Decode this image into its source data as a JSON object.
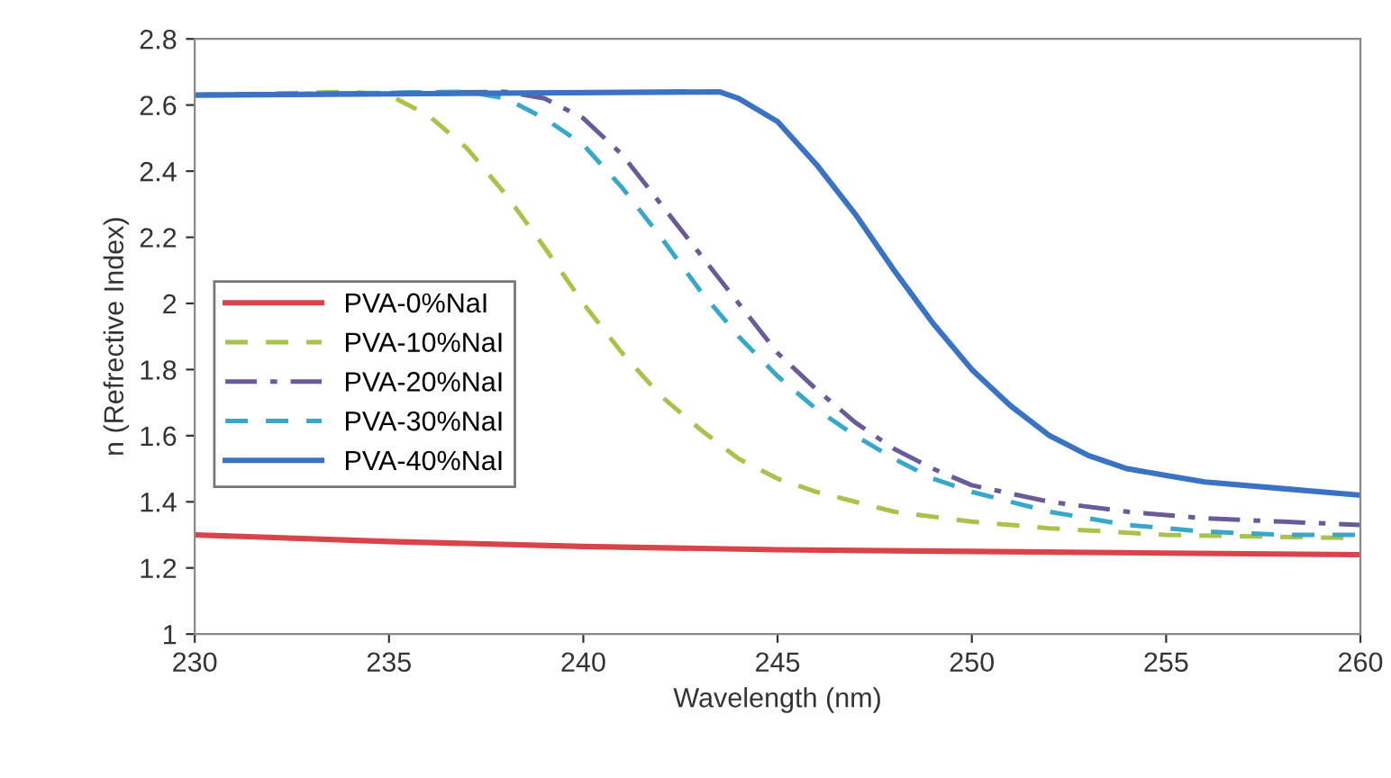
{
  "chart_data": {
    "type": "line",
    "xlabel": "Wavelength (nm)",
    "ylabel": "n (Refrective Index)",
    "xlim": [
      230,
      260
    ],
    "ylim": [
      1,
      2.8
    ],
    "xticks": [
      230,
      235,
      240,
      245,
      250,
      255,
      260
    ],
    "yticks": [
      1,
      1.2,
      1.4,
      1.6,
      1.8,
      2,
      2.2,
      2.4,
      2.6,
      2.8
    ],
    "grid": false,
    "legend": "center left",
    "marker": "none",
    "series": [
      {
        "name": "PVA-0%NaI",
        "color": "#d9434a",
        "line_style": "solid",
        "x": [
          230,
          235,
          240,
          245,
          250,
          255,
          260
        ],
        "values": [
          1.3,
          1.28,
          1.265,
          1.255,
          1.25,
          1.245,
          1.24
        ]
      },
      {
        "name": "PVA-10%NaI",
        "color": "#a8c24a",
        "line_style": "dashed",
        "x": [
          230,
          234,
          235,
          236,
          237,
          238,
          239,
          240,
          241,
          242,
          243,
          244,
          245,
          246,
          247,
          248,
          250,
          252,
          255,
          260
        ],
        "values": [
          2.63,
          2.64,
          2.63,
          2.57,
          2.47,
          2.33,
          2.17,
          2.0,
          1.85,
          1.72,
          1.62,
          1.53,
          1.47,
          1.43,
          1.4,
          1.37,
          1.34,
          1.32,
          1.3,
          1.29
        ]
      },
      {
        "name": "PVA-20%NaI",
        "color": "#6a5a9a",
        "line_style": "dashdot",
        "x": [
          230,
          238,
          239,
          240,
          241,
          242,
          243,
          244,
          245,
          246,
          247,
          248,
          249,
          250,
          252,
          254,
          256,
          258,
          260
        ],
        "values": [
          2.63,
          2.64,
          2.62,
          2.56,
          2.45,
          2.3,
          2.15,
          2.0,
          1.85,
          1.74,
          1.64,
          1.56,
          1.5,
          1.45,
          1.4,
          1.37,
          1.35,
          1.34,
          1.33
        ]
      },
      {
        "name": "PVA-30%NaI",
        "color": "#38a8c8",
        "line_style": "dashed",
        "x": [
          230,
          237,
          238,
          239,
          240,
          241,
          242,
          243,
          244,
          245,
          246,
          247,
          248,
          249,
          250,
          252,
          254,
          256,
          258,
          260
        ],
        "values": [
          2.63,
          2.64,
          2.62,
          2.56,
          2.48,
          2.35,
          2.2,
          2.04,
          1.9,
          1.78,
          1.68,
          1.6,
          1.53,
          1.47,
          1.43,
          1.37,
          1.33,
          1.31,
          1.3,
          1.3
        ]
      },
      {
        "name": "PVA-40%NaI",
        "color": "#3a72c4",
        "line_style": "solid",
        "x": [
          230,
          243.5,
          244,
          245,
          246,
          247,
          248,
          249,
          250,
          251,
          252,
          253,
          254,
          255,
          256,
          258,
          260
        ],
        "values": [
          2.63,
          2.64,
          2.62,
          2.55,
          2.42,
          2.27,
          2.1,
          1.94,
          1.8,
          1.69,
          1.6,
          1.54,
          1.5,
          1.48,
          1.46,
          1.44,
          1.42
        ]
      }
    ]
  }
}
